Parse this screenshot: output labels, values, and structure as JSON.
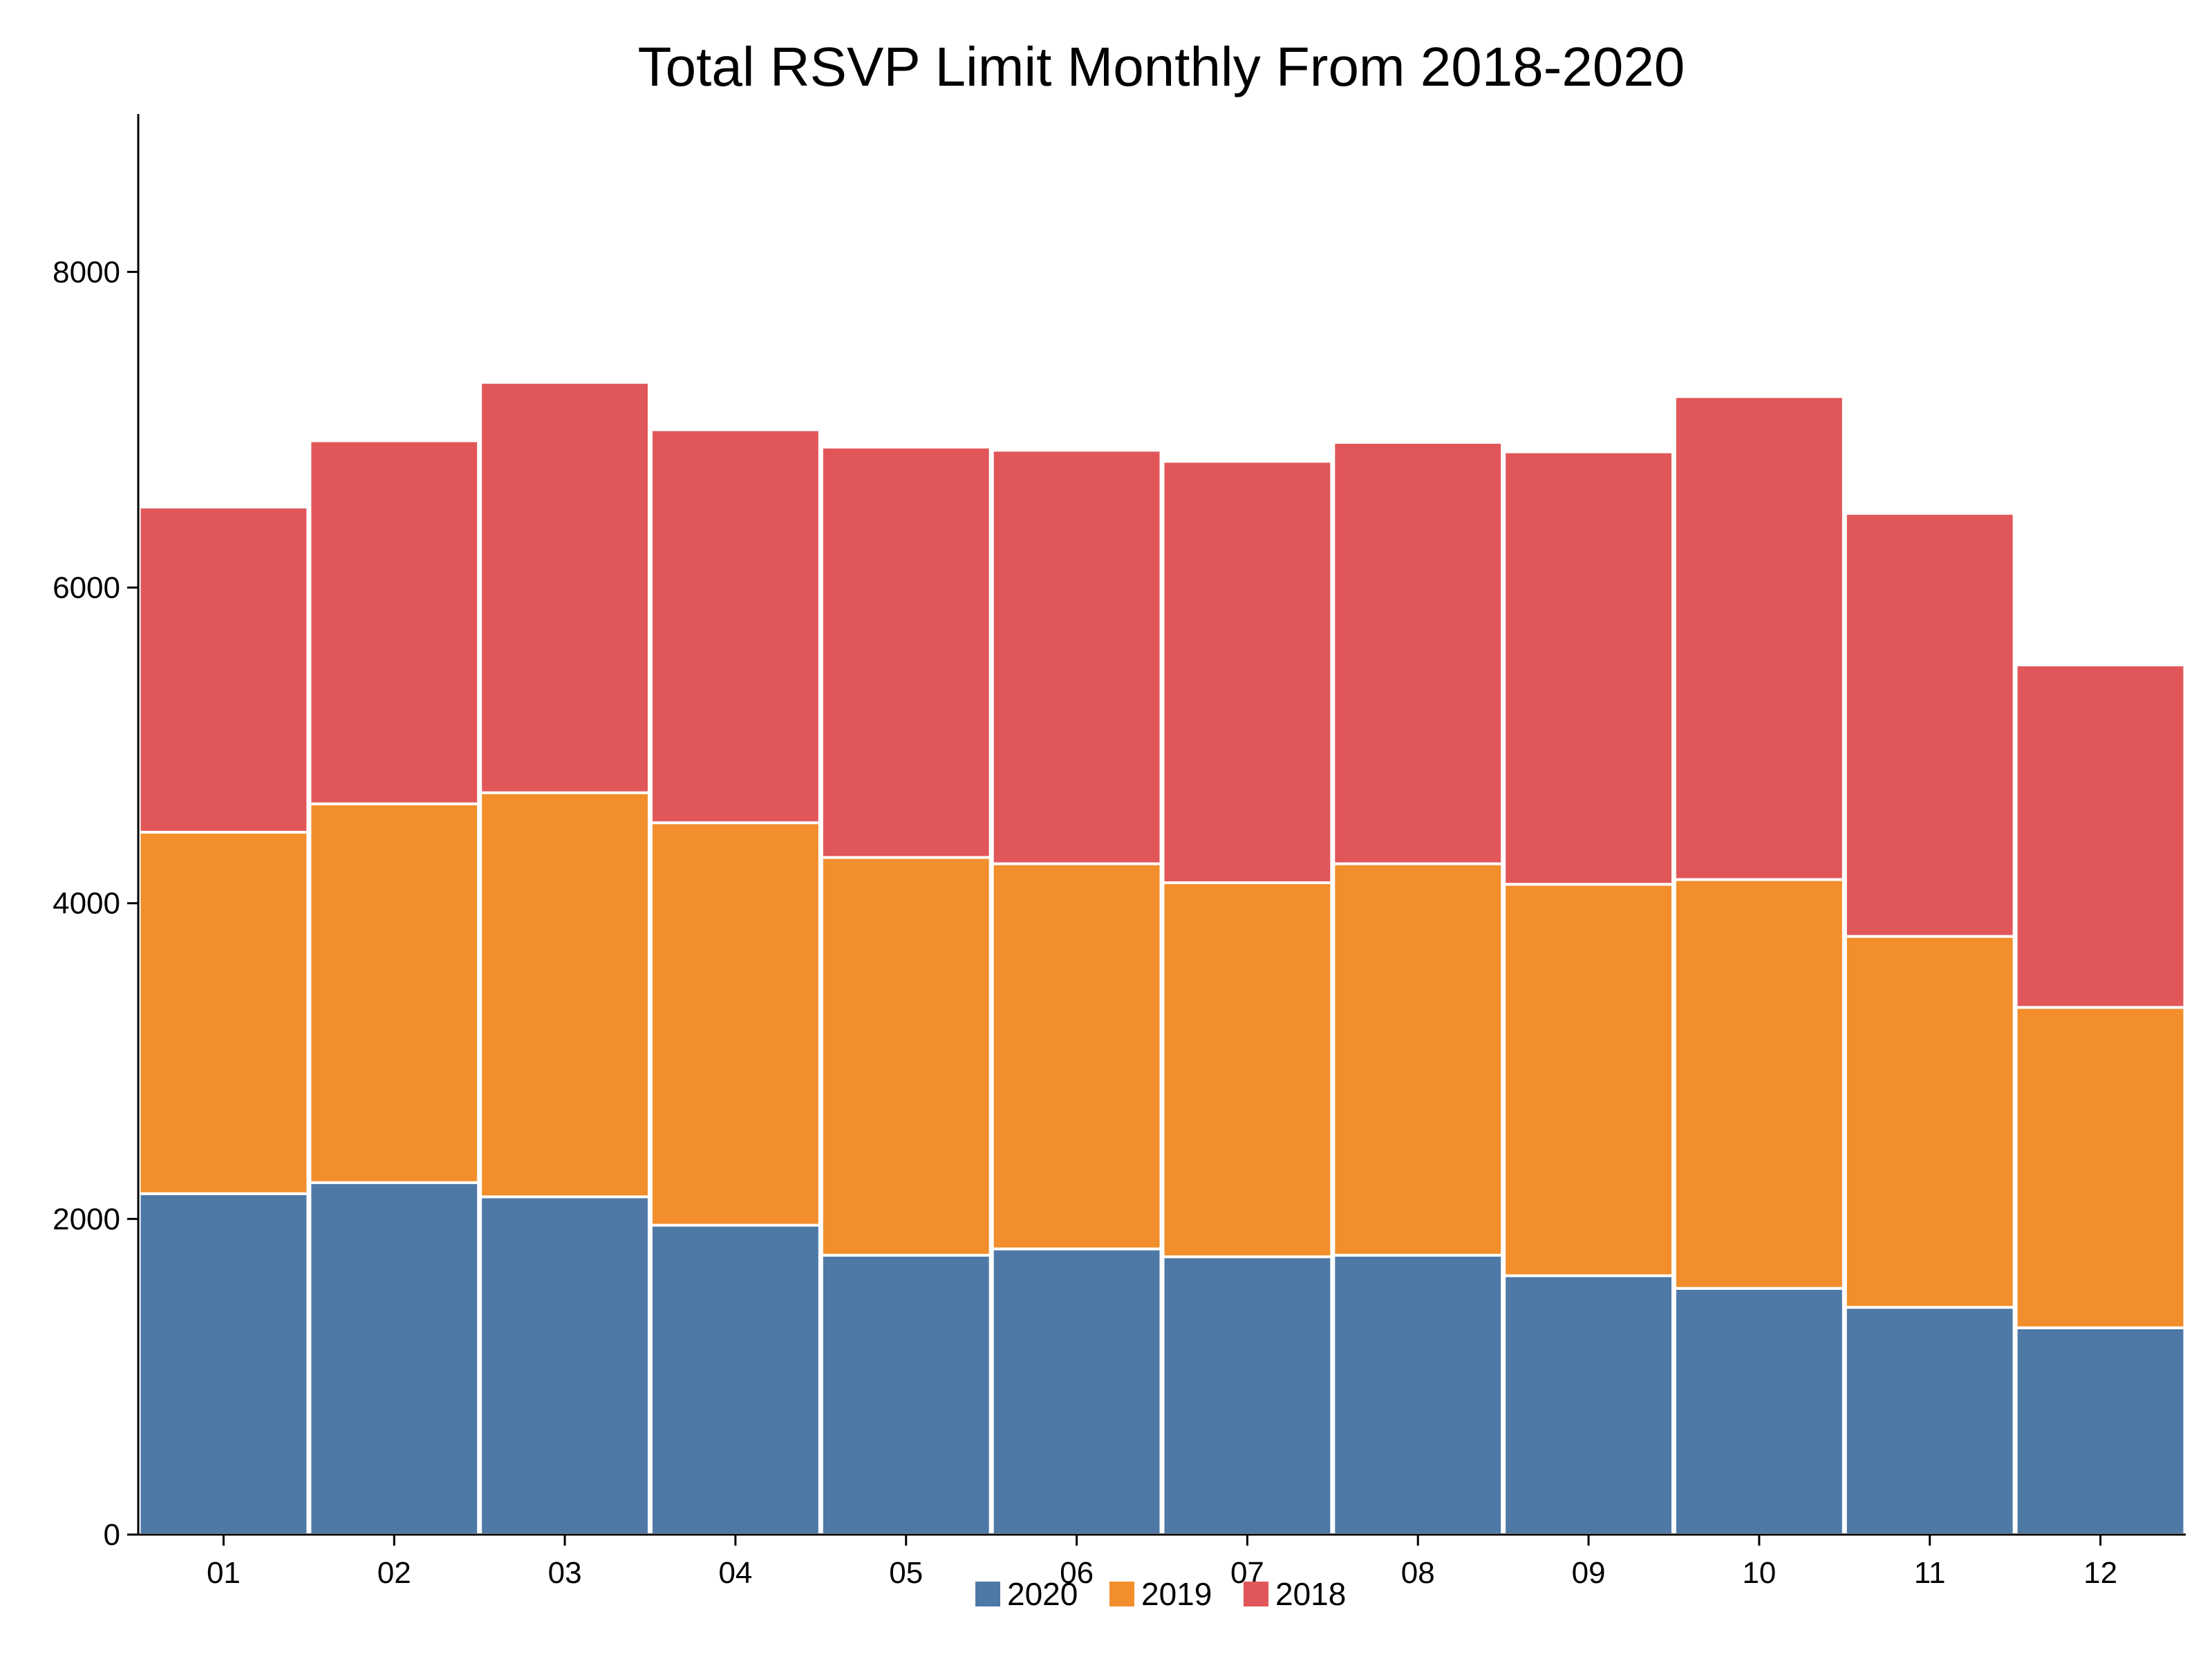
{
  "chart_data": {
    "type": "bar",
    "stacked": true,
    "title": "Total RSVP Limit Monthly From 2018-2020",
    "xlabel": "",
    "ylabel": "",
    "categories": [
      "01",
      "02",
      "03",
      "04",
      "05",
      "06",
      "07",
      "08",
      "09",
      "10",
      "11",
      "12"
    ],
    "series": [
      {
        "name": "2020",
        "color": "#4e79a7",
        "values": [
          2160,
          2230,
          2140,
          1960,
          1770,
          1810,
          1760,
          1770,
          1640,
          1560,
          1440,
          1310
        ]
      },
      {
        "name": "2019",
        "color": "#f28e2b",
        "values": [
          2290,
          2400,
          2560,
          2550,
          2520,
          2440,
          2370,
          2480,
          2480,
          2590,
          2350,
          2030
        ]
      },
      {
        "name": "2018",
        "color": "#e15759",
        "values": [
          2060,
          2300,
          2600,
          2490,
          2600,
          2620,
          2670,
          2670,
          2740,
          3060,
          2680,
          2170
        ]
      }
    ],
    "ylim": [
      0,
      9000
    ],
    "yticks": [
      0,
      2000,
      4000,
      6000,
      8000
    ],
    "grid": false,
    "legend": "bottom-center"
  }
}
